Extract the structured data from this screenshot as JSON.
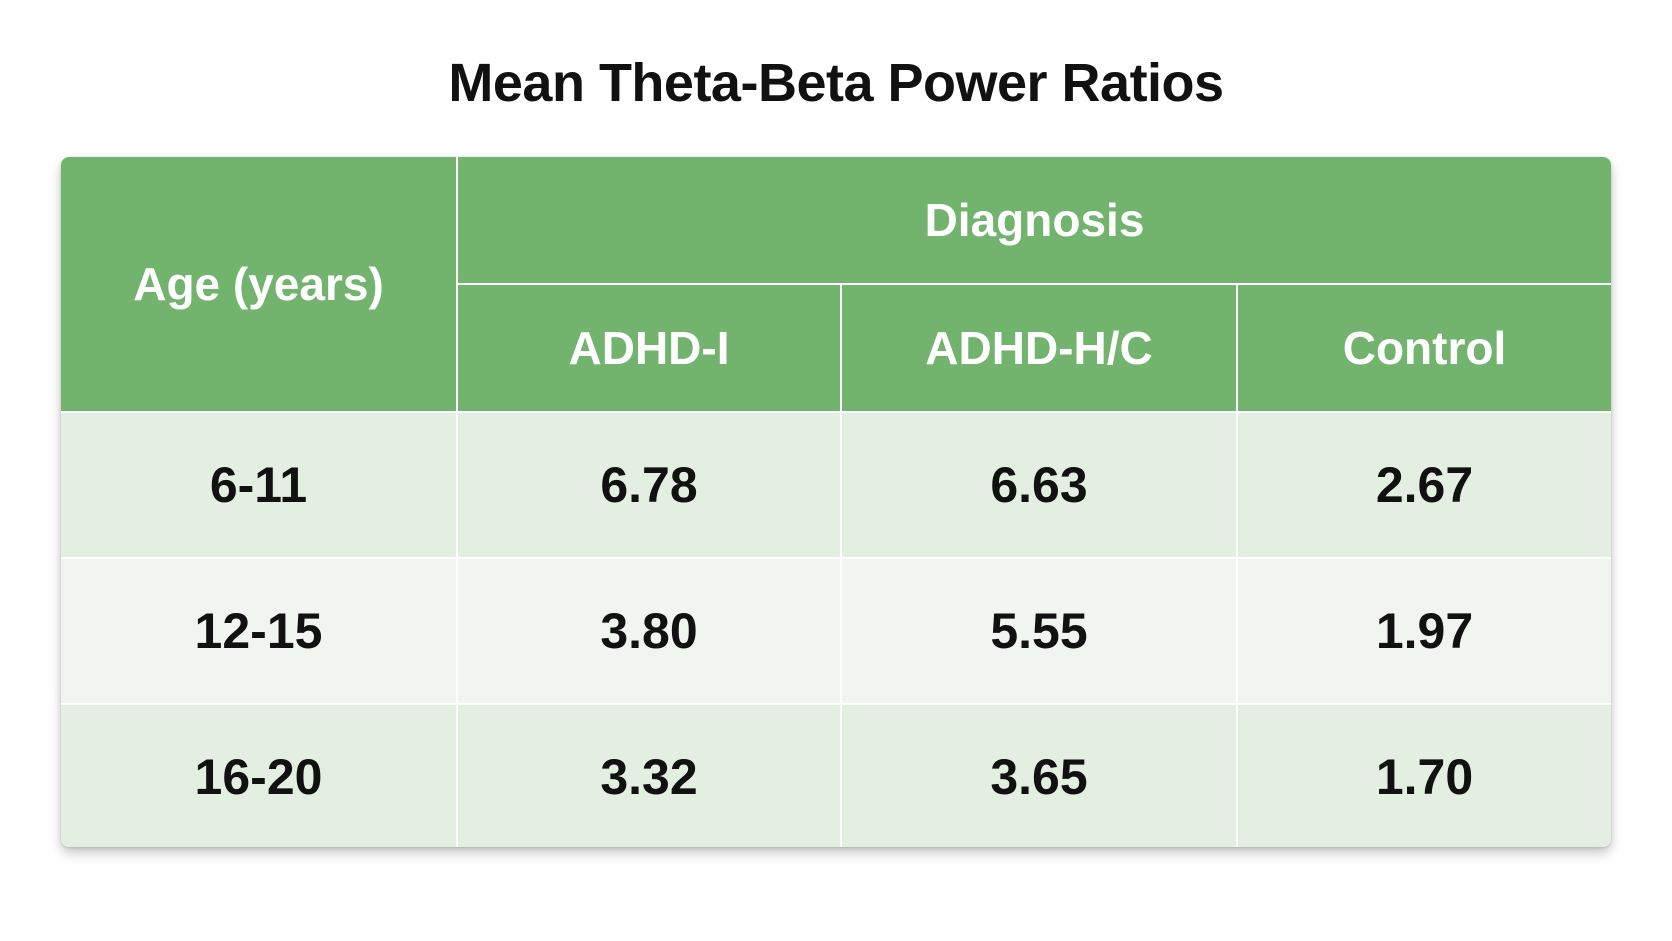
{
  "title": "Mean Theta-Beta Power Ratios",
  "table": {
    "row_header": "Age (years)",
    "group_header": "Diagnosis",
    "columns": [
      "ADHD-I",
      "ADHD-H/C",
      "Control"
    ],
    "rows": [
      {
        "age": "6-11",
        "values": [
          "6.78",
          "6.63",
          "2.67"
        ]
      },
      {
        "age": "12-15",
        "values": [
          "3.80",
          "5.55",
          "1.97"
        ]
      },
      {
        "age": "16-20",
        "values": [
          "3.32",
          "3.65",
          "1.70"
        ]
      }
    ]
  },
  "colors": {
    "header_green": "#72b36e",
    "row_light_green": "#e3efe0",
    "row_pale": "#f1f5ef"
  }
}
